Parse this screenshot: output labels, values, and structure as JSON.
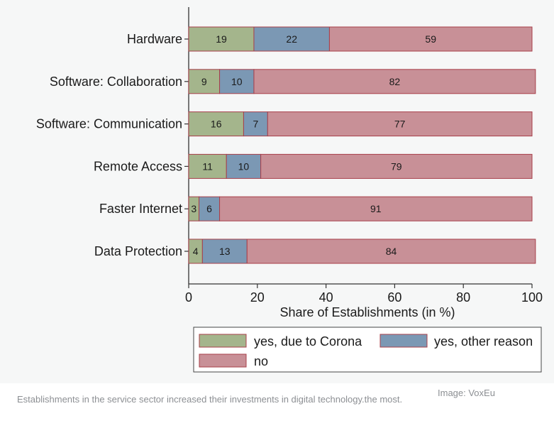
{
  "chart_data": {
    "type": "bar",
    "orientation": "horizontal",
    "stacked": true,
    "categories": [
      "Hardware",
      "Software: Collaboration",
      "Software: Communication",
      "Remote Access",
      "Faster Internet",
      "Data Protection"
    ],
    "series": [
      {
        "name": "yes, due to Corona",
        "color": "#a4b58c",
        "values": [
          19,
          9,
          16,
          11,
          3,
          4
        ]
      },
      {
        "name": "yes, other reason",
        "color": "#7b98b4",
        "values": [
          22,
          10,
          7,
          10,
          6,
          13
        ]
      },
      {
        "name": "no",
        "color": "#c89097",
        "values": [
          59,
          82,
          77,
          79,
          91,
          84
        ]
      }
    ],
    "xlabel": "Share of Establishments (in %)",
    "xlim": [
      0,
      100
    ],
    "xticks": [
      0,
      20,
      40,
      60,
      80,
      100
    ],
    "grid": false,
    "legend_position": "bottom"
  },
  "caption": "Establishments in the service sector increased their investments in digital technology.the most.",
  "credit": "Image: VoxEu",
  "colors": {
    "plot_background": "#f6f7f7",
    "bar_outline": "#a83f4a",
    "caption_text": "#8c8f93"
  }
}
